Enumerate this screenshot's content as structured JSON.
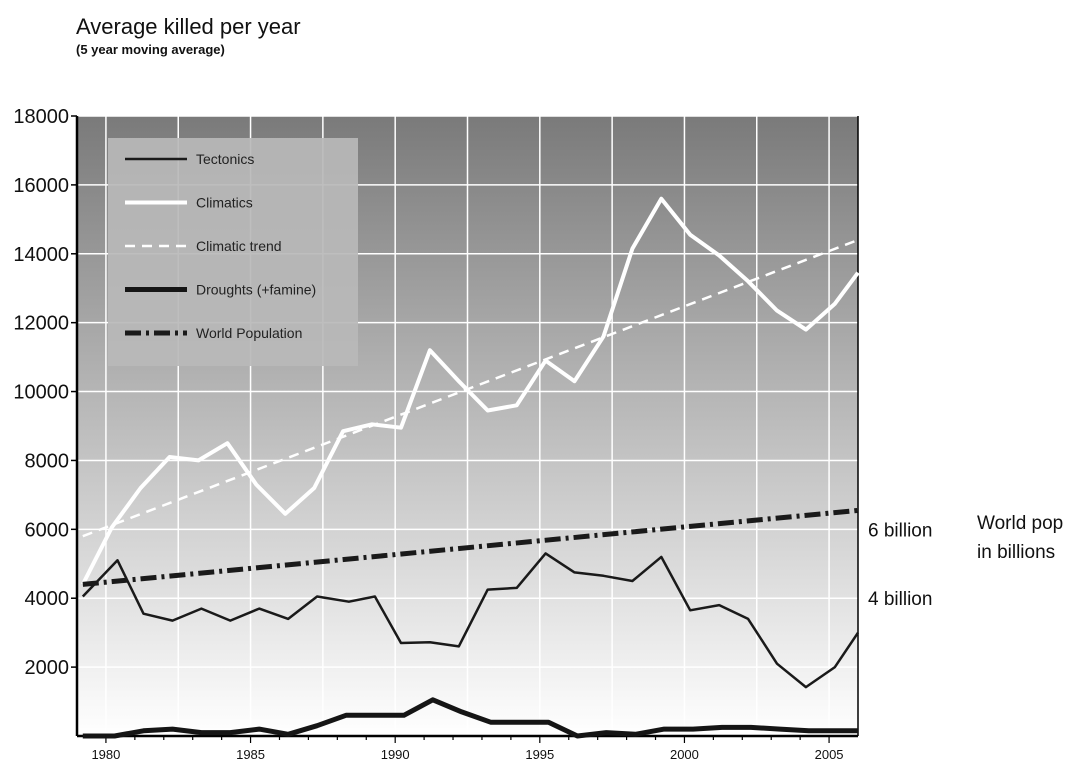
{
  "chart_data": {
    "type": "line",
    "title": "Average killed per year",
    "subtitle": "(5 year moving average)",
    "xlabel": "",
    "ylabel": "",
    "xlim": [
      1979,
      2006
    ],
    "ylim": [
      0,
      18000
    ],
    "yticks": [
      2000,
      4000,
      6000,
      8000,
      10000,
      12000,
      14000,
      16000,
      18000
    ],
    "xticks": [
      1980,
      1985,
      1990,
      1995,
      2000,
      2005
    ],
    "grid": true,
    "legend_position": "top-left",
    "series": [
      {
        "name": "Tectonics",
        "x": [
          1979.2,
          1980.4,
          1981.3,
          1982.3,
          1983.3,
          1984.3,
          1985.3,
          1986.3,
          1987.3,
          1988.4,
          1989.3,
          1990.2,
          1991.2,
          1992.2,
          1993.2,
          1994.2,
          1995.2,
          1996.2,
          1997.2,
          1998.2,
          1999.2,
          2000.2,
          2001.2,
          2002.2,
          2003.2,
          2004.2,
          2005.2,
          2006
        ],
        "y": [
          4050,
          5100,
          3550,
          3350,
          3700,
          3350,
          3700,
          3400,
          4050,
          3900,
          4050,
          2700,
          2720,
          2600,
          4250,
          4300,
          5300,
          4750,
          4650,
          4500,
          5200,
          3650,
          3800,
          3400,
          2100,
          1420,
          2000,
          3000
        ]
      },
      {
        "name": "Climatics",
        "x": [
          1979.2,
          1980.2,
          1981.2,
          1982.2,
          1983.2,
          1984.2,
          1985.2,
          1986.2,
          1987.2,
          1988.2,
          1989.2,
          1990.2,
          1991.2,
          1992.2,
          1993.2,
          1994.2,
          1995.2,
          1996.2,
          1997.2,
          1998.2,
          1999.2,
          2000.2,
          2001.2,
          2002.2,
          2003.2,
          2004.2,
          2005.2,
          2006
        ],
        "y": [
          4400,
          6050,
          7200,
          8100,
          8000,
          8500,
          7300,
          6450,
          7200,
          8850,
          9050,
          8950,
          11200,
          10300,
          9450,
          9600,
          10900,
          10300,
          11600,
          14150,
          15600,
          14550,
          13950,
          13200,
          12350,
          11800,
          12550,
          13450
        ]
      },
      {
        "name": "Climatic trend",
        "x": [
          1979.2,
          2006
        ],
        "y": [
          5800,
          14400
        ]
      },
      {
        "name": "Droughts (+famine)",
        "x": [
          1979.2,
          1980.3,
          1981.3,
          1982.3,
          1983.3,
          1984.3,
          1985.3,
          1986.3,
          1987.3,
          1988.3,
          1989.3,
          1990.3,
          1991.3,
          1992.3,
          1993.3,
          1994.3,
          1995.3,
          1996.3,
          1997.3,
          1998.3,
          1999.3,
          2000.3,
          2001.3,
          2002.3,
          2003.3,
          2004.3,
          2005.3,
          2006
        ],
        "y": [
          0,
          0,
          150,
          200,
          100,
          100,
          200,
          50,
          300,
          600,
          600,
          600,
          1050,
          700,
          400,
          400,
          400,
          0,
          100,
          50,
          200,
          200,
          250,
          250,
          200,
          150,
          150,
          150
        ]
      },
      {
        "name": "World Population",
        "x": [
          1979.2,
          2006
        ],
        "y": [
          4400,
          6550
        ]
      }
    ],
    "annotations": [
      {
        "text": "6 billion",
        "x": 2006,
        "y": 6000
      },
      {
        "text": "4 billion",
        "x": 2006,
        "y": 4000
      }
    ],
    "side_label": [
      "World pop",
      "in billions"
    ],
    "colors": {
      "tectonics": "#1a1a1a",
      "climatics": "#ffffff",
      "climatic_trend": "#ffffff",
      "droughts": "#151515",
      "world_population": "#1a1a1a",
      "background_top": "#7a7a7a",
      "background_bottom": "#ffffff",
      "legend_box": "#b8b8b8"
    }
  }
}
